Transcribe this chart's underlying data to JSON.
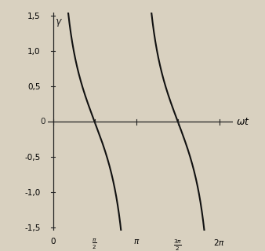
{
  "xlim_min": -0.2,
  "xlim_max": 6.8,
  "ylim": [
    -1.55,
    1.55
  ],
  "background_color": "#d9d1c0",
  "line_color": "#111111",
  "axis_color": "#222222",
  "ylabel": "γ",
  "xlabel": "ωt",
  "m": 1.45,
  "clip_val": 1.55,
  "figsize": [
    3.38,
    3.2
  ],
  "dpi": 100,
  "linewidth": 1.5
}
